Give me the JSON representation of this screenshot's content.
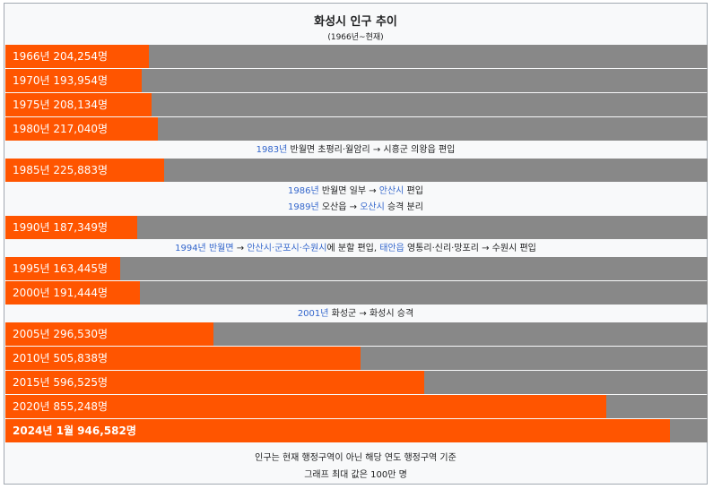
{
  "chart_data": {
    "type": "bar",
    "orientation": "horizontal",
    "title": "화성시 인구 추이",
    "subtitle": "(1966년~현재)",
    "xlim": [
      0,
      1000000
    ],
    "rows": [
      {
        "label": "1966년 204,254명",
        "value": 204254
      },
      {
        "label": "1970년 193,954명",
        "value": 193954
      },
      {
        "label": "1975년 208,134명",
        "value": 208134
      },
      {
        "label": "1980년 217,040명",
        "value": 217040
      },
      {
        "label": "1985년 225,883명",
        "value": 225883
      },
      {
        "label": "1990년 187,349명",
        "value": 187349
      },
      {
        "label": "1995년 163,445명",
        "value": 163445
      },
      {
        "label": "2000년 191,444명",
        "value": 191444
      },
      {
        "label": "2005년 296,530명",
        "value": 296530
      },
      {
        "label": "2010년 505,838명",
        "value": 505838
      },
      {
        "label": "2015년 596,525명",
        "value": 596525
      },
      {
        "label": "2020년 855,248명",
        "value": 855248
      },
      {
        "label": "2024년 1월 946,582명",
        "value": 946582,
        "bold": true
      }
    ],
    "annotations": [
      {
        "parts": [
          {
            "t": "1983년",
            "link": true
          },
          {
            "t": " 반월면 초평리·월암리 → 시흥군 의왕읍 편입"
          }
        ]
      },
      {
        "parts": [
          {
            "t": "1986년",
            "link": true
          },
          {
            "t": " 반월면 일부 → "
          },
          {
            "t": "안산시",
            "link": true
          },
          {
            "t": " 편입"
          }
        ]
      },
      {
        "parts": [
          {
            "t": "1989년",
            "link": true
          },
          {
            "t": " 오산읍 → "
          },
          {
            "t": "오산시",
            "link": true
          },
          {
            "t": " 승격 분리"
          }
        ]
      },
      {
        "parts": [
          {
            "t": "1994년",
            "link": true
          },
          {
            "t": " "
          },
          {
            "t": "반월면",
            "link": true
          },
          {
            "t": " → "
          },
          {
            "t": "안산시·군포시·수원시",
            "link": true
          },
          {
            "t": "에 분할 편입, "
          },
          {
            "t": "태안읍",
            "link": true
          },
          {
            "t": " 영통리·신리·망포리 → 수원시 편입"
          }
        ]
      },
      {
        "parts": [
          {
            "t": "2001년",
            "link": true
          },
          {
            "t": " 화성군 → 화성시 승격"
          }
        ]
      }
    ],
    "footnotes": [
      "인구는 현재 행정구역이 아닌 해당 연도 행정구역 기준",
      "그래프 최대 값은 100만 명"
    ],
    "colors": {
      "bar": "#ff5500",
      "track": "#888888",
      "link": "#3366cc"
    }
  }
}
